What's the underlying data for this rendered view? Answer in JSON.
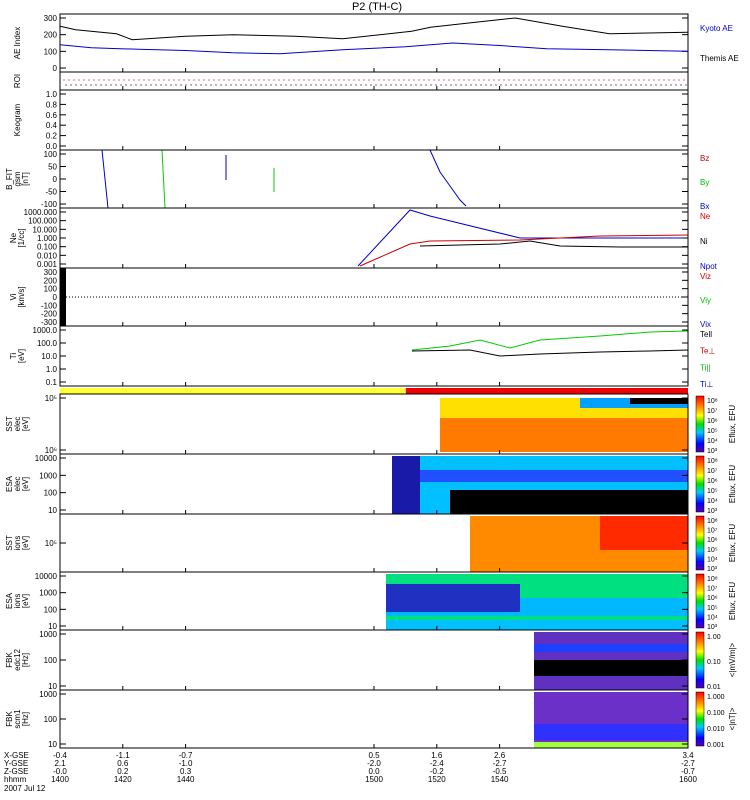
{
  "chart_data": {
    "type": "line",
    "title": "P2 (TH-C)",
    "x_ticks": [
      "1400",
      "1420",
      "1440",
      "1500",
      "1520",
      "1540",
      "1600"
    ],
    "x_range": [
      1400,
      1600
    ],
    "footer": {
      "row_labels": [
        "X-GSE",
        "Y-GSE",
        "Z-GSE",
        "hhmm",
        "2007 Jul 12"
      ],
      "columns": [
        [
          "-0.4",
          "2.1",
          "-0.0",
          "1400"
        ],
        [
          "-1.1",
          "0.6",
          "0.2",
          "1420"
        ],
        [
          "-0.7",
          "-1.0",
          "0.3",
          "1440"
        ],
        [
          "0.5",
          "-2.0",
          "0.0",
          "1500"
        ],
        [
          "1.6",
          "-2.4",
          "-0.2",
          "1520"
        ],
        [
          "2.6",
          "-2.7",
          "-0.5",
          "1540"
        ],
        [
          "3.4",
          "-2.7",
          "-0.7",
          "1600"
        ]
      ]
    },
    "panels": [
      {
        "ylabel": [
          "AE Index"
        ],
        "yticks": [
          "300",
          "200",
          "100",
          "0"
        ],
        "legend": [
          {
            "text": "Kyoto AE",
            "color": "#0000cc"
          },
          {
            "text": "Themis AE",
            "color": "#000000"
          }
        ],
        "series": [
          {
            "name": "Kyoto AE",
            "color": "#0000cc",
            "x": [
              1400,
              1410,
              1425,
              1440,
              1455,
              1470,
              1490,
              1510,
              1525,
              1540,
              1555,
              1575,
              1600
            ],
            "y": [
              140,
              122,
              112,
              105,
              92,
              85,
              110,
              128,
              150,
              135,
              115,
              110,
              100
            ]
          },
          {
            "name": "Themis AE",
            "color": "#000000",
            "x": [
              1400,
              1405,
              1418,
              1423,
              1440,
              1455,
              1475,
              1490,
              1512,
              1518,
              1528,
              1545,
              1560,
              1575,
              1600
            ],
            "y": [
              250,
              230,
              205,
              170,
              190,
              200,
              190,
              175,
              220,
              245,
              265,
              300,
              250,
              205,
              215
            ]
          }
        ]
      },
      {
        "ylabel": [
          "ROI"
        ],
        "yticks": []
      },
      {
        "ylabel": [
          "Keogram"
        ],
        "yticks": [
          "1.0",
          "0.8",
          "0.6",
          "0.4",
          "0.2",
          "0.0"
        ]
      },
      {
        "ylabel": [
          "B_FIT",
          "gsm",
          "[nT]"
        ],
        "yticks": [
          "100",
          "50",
          "0",
          "-50",
          "-100"
        ],
        "legend": [
          {
            "text": "Bz",
            "color": "#cc0000"
          },
          {
            "text": "By",
            "color": "#00bb00"
          },
          {
            "text": "Bx",
            "color": "#0000cc"
          }
        ]
      },
      {
        "ylabel": [
          "Ne",
          "[1/cc]"
        ],
        "yticks": [
          "1000.000",
          "100.000",
          "10.000",
          "1.000",
          "0.100",
          "0.010",
          "0.001"
        ],
        "legend": [
          {
            "text": "Ne",
            "color": "#cc0000"
          },
          {
            "text": "Ni",
            "color": "#000000"
          },
          {
            "text": "Npot",
            "color": "#0000cc"
          }
        ]
      },
      {
        "ylabel": [
          "Vi",
          "[km/s]"
        ],
        "yticks": [
          "300",
          "200",
          "100",
          "0",
          "-100",
          "-200",
          "-300"
        ],
        "legend": [
          {
            "text": "Viz",
            "color": "#cc0000"
          },
          {
            "text": "Viy",
            "color": "#00bb00"
          },
          {
            "text": "Vix",
            "color": "#0000cc"
          }
        ]
      },
      {
        "ylabel": [
          "Ti",
          "[eV]"
        ],
        "yticks": [
          "1000.0",
          "100.0",
          "10.0",
          "1.0",
          "0.1"
        ],
        "legend": [
          {
            "text": "Tell",
            "color": "#000000"
          },
          {
            "text": "Te⊥",
            "color": "#cc0000"
          },
          {
            "text": "Ti||",
            "color": "#00bb00"
          },
          {
            "text": "Ti⊥",
            "color": "#0000cc"
          }
        ]
      },
      {
        "ylabel": [],
        "yticks": []
      },
      {
        "ylabel": [
          "SST",
          "elec",
          "[eV]"
        ],
        "yticks": [
          "10⁵",
          "10⁶"
        ],
        "colorbar": [
          "10⁸",
          "10⁷",
          "10⁶",
          "10⁵",
          "10⁴",
          "10³"
        ],
        "cblabel": "Eflux, EFU"
      },
      {
        "ylabel": [
          "ESA",
          "elec",
          "[eV]"
        ],
        "yticks": [
          "10000",
          "1000",
          "100",
          "10"
        ],
        "colorbar": [
          "10⁸",
          "10⁷",
          "10⁶",
          "10⁵",
          "10⁴",
          "10³"
        ],
        "cblabel": "Eflux, EFU"
      },
      {
        "ylabel": [
          "SST",
          "ions",
          "[eV]"
        ],
        "yticks": [
          "10⁵"
        ],
        "colorbar": [
          "10⁸",
          "10⁷",
          "10⁶",
          "10⁵",
          "10⁴",
          "10³"
        ],
        "cblabel": "Eflux, EFU"
      },
      {
        "ylabel": [
          "ESA",
          "ions",
          "[eV]"
        ],
        "yticks": [
          "10000",
          "1000",
          "100",
          "10"
        ],
        "colorbar": [
          "10⁸",
          "10⁷",
          "10⁶",
          "10⁵",
          "10⁴",
          "10³"
        ],
        "cblabel": "Eflux, EFU"
      },
      {
        "ylabel": [
          "FBK",
          "edc12",
          "[Hz]"
        ],
        "yticks": [
          "1000",
          "100",
          "10"
        ],
        "colorbar": [
          "1.00",
          "0.10",
          "0.01"
        ],
        "cblabel": "<|mV/m|>"
      },
      {
        "ylabel": [
          "FBK",
          "scm1",
          "[Hz]"
        ],
        "yticks": [
          "1000",
          "100",
          "10"
        ],
        "colorbar": [
          "1.000",
          "0.100",
          "0.010",
          "0.001"
        ],
        "cblabel": "<|nT|>"
      }
    ]
  }
}
